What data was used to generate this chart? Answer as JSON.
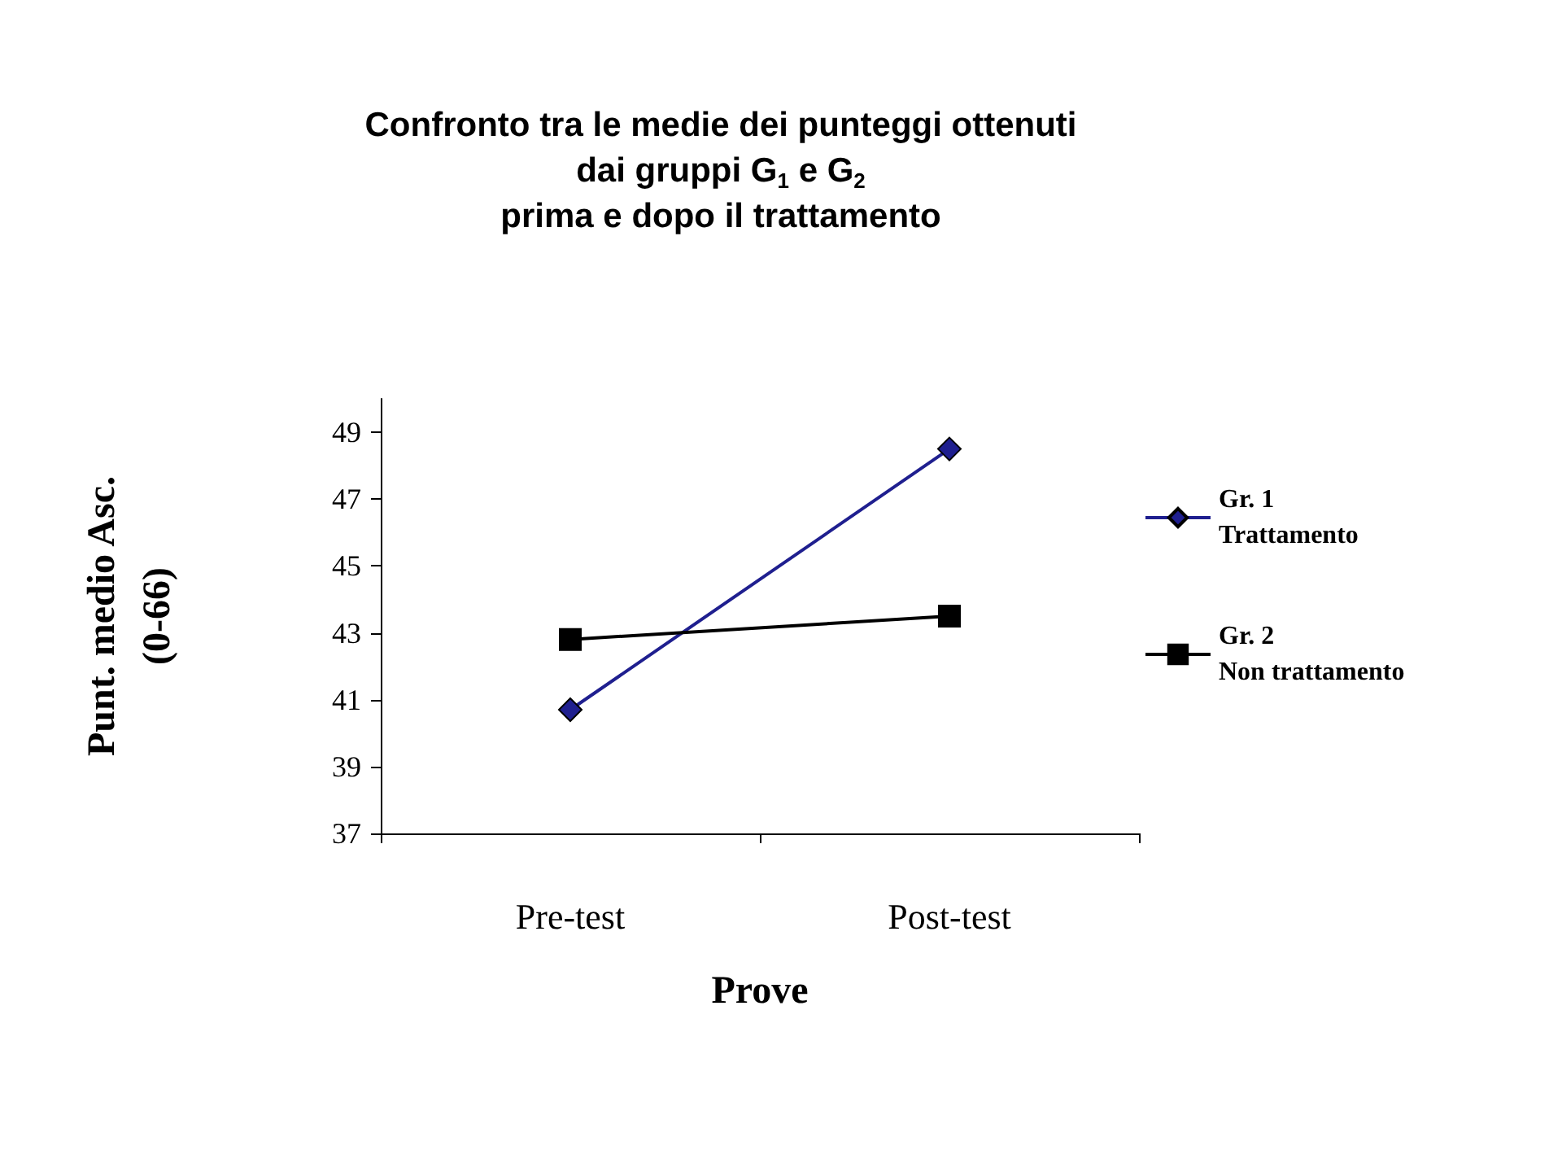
{
  "chart_data": {
    "type": "line",
    "title": "Confronto tra le medie dei punteggi ottenuti\ndai gruppi G$_{1}$ e G$_{2}$\nprima e dopo il trattamento",
    "xlabel": "Prove",
    "ylabel": "Punt. medio Asc.\n(0-66)",
    "categories": [
      "Pre-test",
      "Post-test"
    ],
    "series": [
      {
        "name": "Gr. 1\nTrattamento",
        "color": "#1f1f8f",
        "marker": "diamond",
        "values": [
          40.7,
          48.5
        ]
      },
      {
        "name": "Gr. 2\nNon trattamento",
        "color": "#000000",
        "marker": "square",
        "values": [
          42.8,
          43.5
        ]
      }
    ],
    "ylim": [
      37,
      50
    ],
    "yticks": [
      37,
      39,
      41,
      43,
      45,
      47,
      49
    ],
    "grid": false,
    "legend": "right"
  }
}
